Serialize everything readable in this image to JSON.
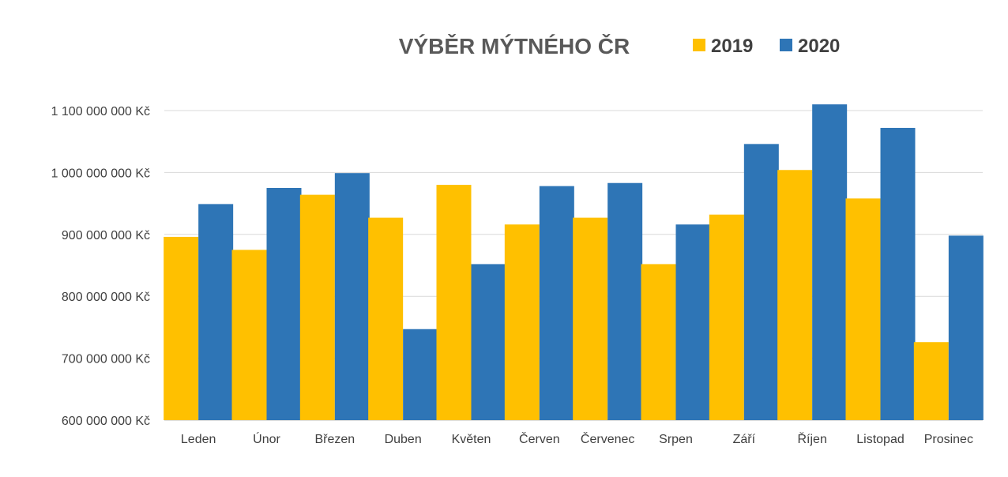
{
  "chart_data": {
    "type": "bar",
    "title": "VÝBĚR MÝTNÉHO ČR",
    "categories": [
      "Leden",
      "Únor",
      "Březen",
      "Duben",
      "Květen",
      "Červen",
      "Červenec",
      "Srpen",
      "Září",
      "Říjen",
      "Listopad",
      "Prosinec"
    ],
    "series": [
      {
        "name": "2019",
        "color": "#FFC000",
        "values": [
          896000000,
          875000000,
          964000000,
          927000000,
          980000000,
          916000000,
          927000000,
          852000000,
          932000000,
          1004000000,
          958000000,
          726000000
        ]
      },
      {
        "name": "2020",
        "color": "#2E75B6",
        "values": [
          949000000,
          975000000,
          999000000,
          747000000,
          852000000,
          978000000,
          983000000,
          916000000,
          1046000000,
          1110000000,
          1072000000,
          898000000
        ]
      }
    ],
    "yticks": [
      "600 000 000 Kč",
      "700 000 000 Kč",
      "800 000 000 Kč",
      "900 000 000 Kč",
      "1 000 000 000 Kč",
      "1 100 000 000 Kč"
    ],
    "ylim": [
      600000000,
      1100000000
    ],
    "ytick_values": [
      600000000,
      700000000,
      800000000,
      900000000,
      1000000000,
      1100000000
    ],
    "xlabel": "",
    "ylabel": "",
    "grid": true,
    "legend_position": "top-right"
  }
}
